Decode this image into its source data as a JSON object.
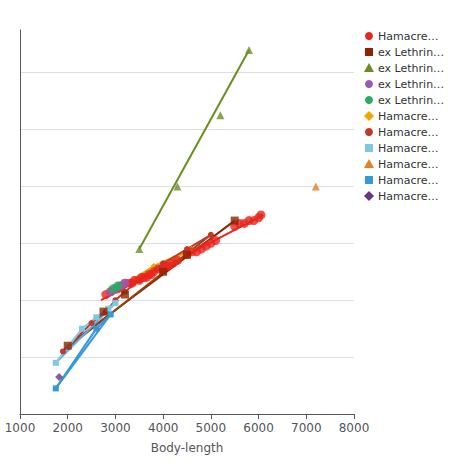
{
  "chart_data": {
    "type": "scatter",
    "xlabel": "Body-length",
    "xlim": [
      1000,
      8000
    ],
    "xticks": [
      1000,
      2000,
      3000,
      4000,
      5000,
      6000,
      7000,
      8000
    ],
    "ylim": [
      20,
      155
    ],
    "yticks": [
      20,
      40,
      60,
      80,
      100,
      120,
      140
    ],
    "grid": true,
    "tick_labels": "x",
    "legend": "right",
    "series": [
      {
        "type": "line",
        "color": "#e8251f",
        "marker": "none",
        "line_style": "solid",
        "x": [
          2700,
          6100
        ],
        "values": [
          60,
          90
        ]
      },
      {
        "type": "line",
        "color": "#8b2500",
        "marker": "none",
        "line_style": "solid",
        "x": [
          2000,
          5500
        ],
        "values": [
          44,
          88
        ]
      },
      {
        "type": "line",
        "color": "#6b8e23",
        "marker": "none",
        "line_style": "solid",
        "x": [
          3500,
          5800
        ],
        "values": [
          78,
          148
        ]
      },
      {
        "type": "line",
        "color": "#f0a800",
        "marker": "none",
        "line_style": "solid",
        "x": [
          3050,
          4600
        ],
        "values": [
          64,
          78
        ]
      },
      {
        "type": "line",
        "color": "#8b4513",
        "marker": "none",
        "line_style": "solid",
        "x": [
          1900,
          5000
        ],
        "values": [
          42,
          83
        ]
      },
      {
        "type": "line",
        "color": "#5dade2",
        "marker": "none",
        "line_style": "solid",
        "x": [
          1750,
          3000
        ],
        "values": [
          38,
          59
        ]
      },
      {
        "type": "line",
        "color": "#3498db",
        "marker": "none",
        "line_style": "solid",
        "x": [
          1750,
          2900
        ],
        "values": [
          29,
          55
        ]
      },
      {
        "name": "Hamacre…",
        "type": "scatter",
        "color": "#e8251f",
        "marker": "circle",
        "x": [
          2800,
          2900,
          3000,
          3050,
          3100,
          3200,
          3300,
          3350,
          3400,
          3500,
          3550,
          3600,
          3650,
          3700,
          3750,
          3800,
          3900,
          4000,
          4050,
          4100,
          4200,
          4300,
          4500,
          4600,
          4700,
          4800,
          4900,
          5000,
          5100,
          5500,
          5600,
          5700,
          5800,
          5900,
          6000,
          6050
        ],
        "values": [
          62,
          63,
          64,
          64,
          65,
          66,
          66,
          66,
          67,
          67,
          68,
          68,
          68,
          69,
          69,
          70,
          71,
          71,
          72,
          72,
          73,
          74,
          76,
          77,
          77,
          78,
          79,
          80,
          81,
          86,
          87,
          87,
          88,
          88,
          89,
          90
        ]
      },
      {
        "name": "ex Lethrin…",
        "type": "scatter",
        "color": "#8b2500",
        "marker": "square",
        "x": [
          2000,
          2750,
          3200,
          4000,
          4500,
          5500
        ],
        "values": [
          44,
          56,
          62,
          70,
          76,
          88
        ]
      },
      {
        "name": "ex Lethrin…",
        "type": "scatter",
        "color": "#6b8e23",
        "marker": "triangle",
        "x": [
          3500,
          4300,
          5200,
          5800
        ],
        "values": [
          78,
          100,
          125,
          148
        ]
      },
      {
        "name": "ex Lethrin…",
        "type": "scatter",
        "color": "#9b59b6",
        "marker": "circle",
        "x": [
          2900,
          3000,
          3100,
          3200
        ],
        "values": [
          63,
          64,
          65,
          66
        ]
      },
      {
        "name": "ex Lethrin…",
        "type": "scatter",
        "color": "#27ae60",
        "marker": "circle",
        "x": [
          2950,
          3050
        ],
        "values": [
          64,
          65
        ]
      },
      {
        "name": "Hamacre…",
        "type": "line",
        "color": "#f0a800",
        "marker": "diamond",
        "line_style": "solid",
        "x": [
          3050,
          3800,
          4600
        ],
        "values": [
          64,
          72,
          78
        ]
      },
      {
        "name": "Hamacre…",
        "type": "line",
        "color": "#c0392b",
        "marker": "circle",
        "line_style": "solid",
        "x": [
          1900,
          2500,
          2800,
          3000,
          3200,
          3500,
          4000,
          4500,
          5000
        ],
        "values": [
          42,
          52,
          56,
          60,
          63,
          67,
          73,
          78,
          83
        ]
      },
      {
        "name": "Hamacre…",
        "type": "line",
        "color": "#7ec8e3",
        "marker": "square",
        "line_style": "solid",
        "x": [
          1750,
          2300,
          2600,
          2850,
          3000
        ],
        "values": [
          38,
          50,
          54,
          57,
          59
        ]
      },
      {
        "name": "Hamacre…",
        "type": "scatter",
        "color": "#e67e22",
        "marker": "triangle",
        "x": [
          7200
        ],
        "values": [
          100
        ]
      },
      {
        "name": "Hamacre…",
        "type": "line",
        "color": "#3498db",
        "marker": "square",
        "line_style": "solid",
        "x": [
          1750,
          2600,
          2900
        ],
        "values": [
          29,
          50,
          55
        ]
      },
      {
        "name": "Hamacre…",
        "type": "scatter",
        "color": "#6c3483",
        "marker": "diamond",
        "x": [
          1820
        ],
        "values": [
          33
        ]
      }
    ]
  }
}
